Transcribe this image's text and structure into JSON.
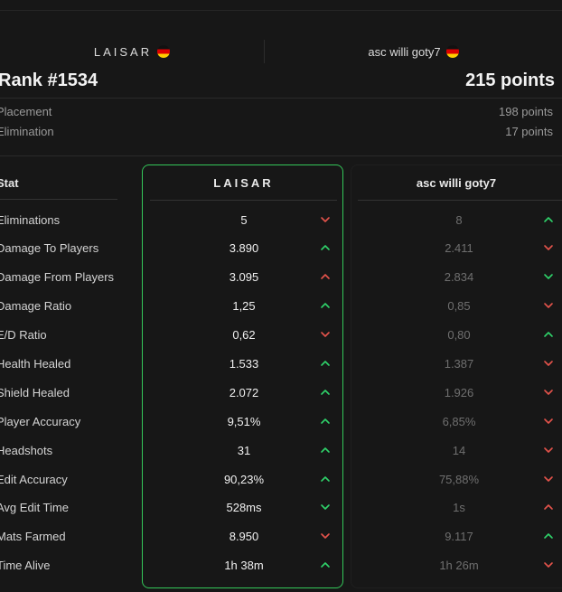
{
  "players": {
    "left": {
      "name": "LAISAR",
      "flag": "germany-flag-icon"
    },
    "right": {
      "name": "asc willi goty7",
      "flag": "germany-flag-icon"
    }
  },
  "summary": {
    "rank": "Rank #1534",
    "points": "215 points"
  },
  "breakdown": [
    {
      "label": "Placement",
      "value": "198 points"
    },
    {
      "label": "Elimination",
      "value": "17 points"
    }
  ],
  "table": {
    "stat_header": "Stat",
    "left_header": "LAISAR",
    "right_header": "asc willi goty7",
    "rows": [
      {
        "stat": "Eliminations",
        "left": "5",
        "left_trend": "down",
        "right": "8",
        "right_trend": "up"
      },
      {
        "stat": "Damage To Players",
        "left": "3.890",
        "left_trend": "up",
        "right": "2.411",
        "right_trend": "down"
      },
      {
        "stat": "Damage From Players",
        "left": "3.095",
        "left_trend": "up-red",
        "right": "2.834",
        "right_trend": "down-green"
      },
      {
        "stat": "Damage Ratio",
        "left": "1,25",
        "left_trend": "up",
        "right": "0,85",
        "right_trend": "down"
      },
      {
        "stat": "E/D Ratio",
        "left": "0,62",
        "left_trend": "down",
        "right": "0,80",
        "right_trend": "up"
      },
      {
        "stat": "Health Healed",
        "left": "1.533",
        "left_trend": "up",
        "right": "1.387",
        "right_trend": "down"
      },
      {
        "stat": "Shield Healed",
        "left": "2.072",
        "left_trend": "up",
        "right": "1.926",
        "right_trend": "down"
      },
      {
        "stat": "Player Accuracy",
        "left": "9,51%",
        "left_trend": "up",
        "right": "6,85%",
        "right_trend": "down"
      },
      {
        "stat": "Headshots",
        "left": "31",
        "left_trend": "up",
        "right": "14",
        "right_trend": "down"
      },
      {
        "stat": "Edit Accuracy",
        "left": "90,23%",
        "left_trend": "up",
        "right": "75,88%",
        "right_trend": "down"
      },
      {
        "stat": "Avg Edit Time",
        "left": "528ms",
        "left_trend": "down-green",
        "right": "1s",
        "right_trend": "up-red"
      },
      {
        "stat": "Mats Farmed",
        "left": "8.950",
        "left_trend": "down",
        "right": "9.117",
        "right_trend": "up"
      },
      {
        "stat": "Time Alive",
        "left": "1h 38m",
        "left_trend": "up",
        "right": "1h 26m",
        "right_trend": "down"
      }
    ]
  },
  "colors": {
    "background": "#171717",
    "accent_green": "#34c759",
    "trend_green": "#2fd36a",
    "trend_red": "#e5534b"
  }
}
